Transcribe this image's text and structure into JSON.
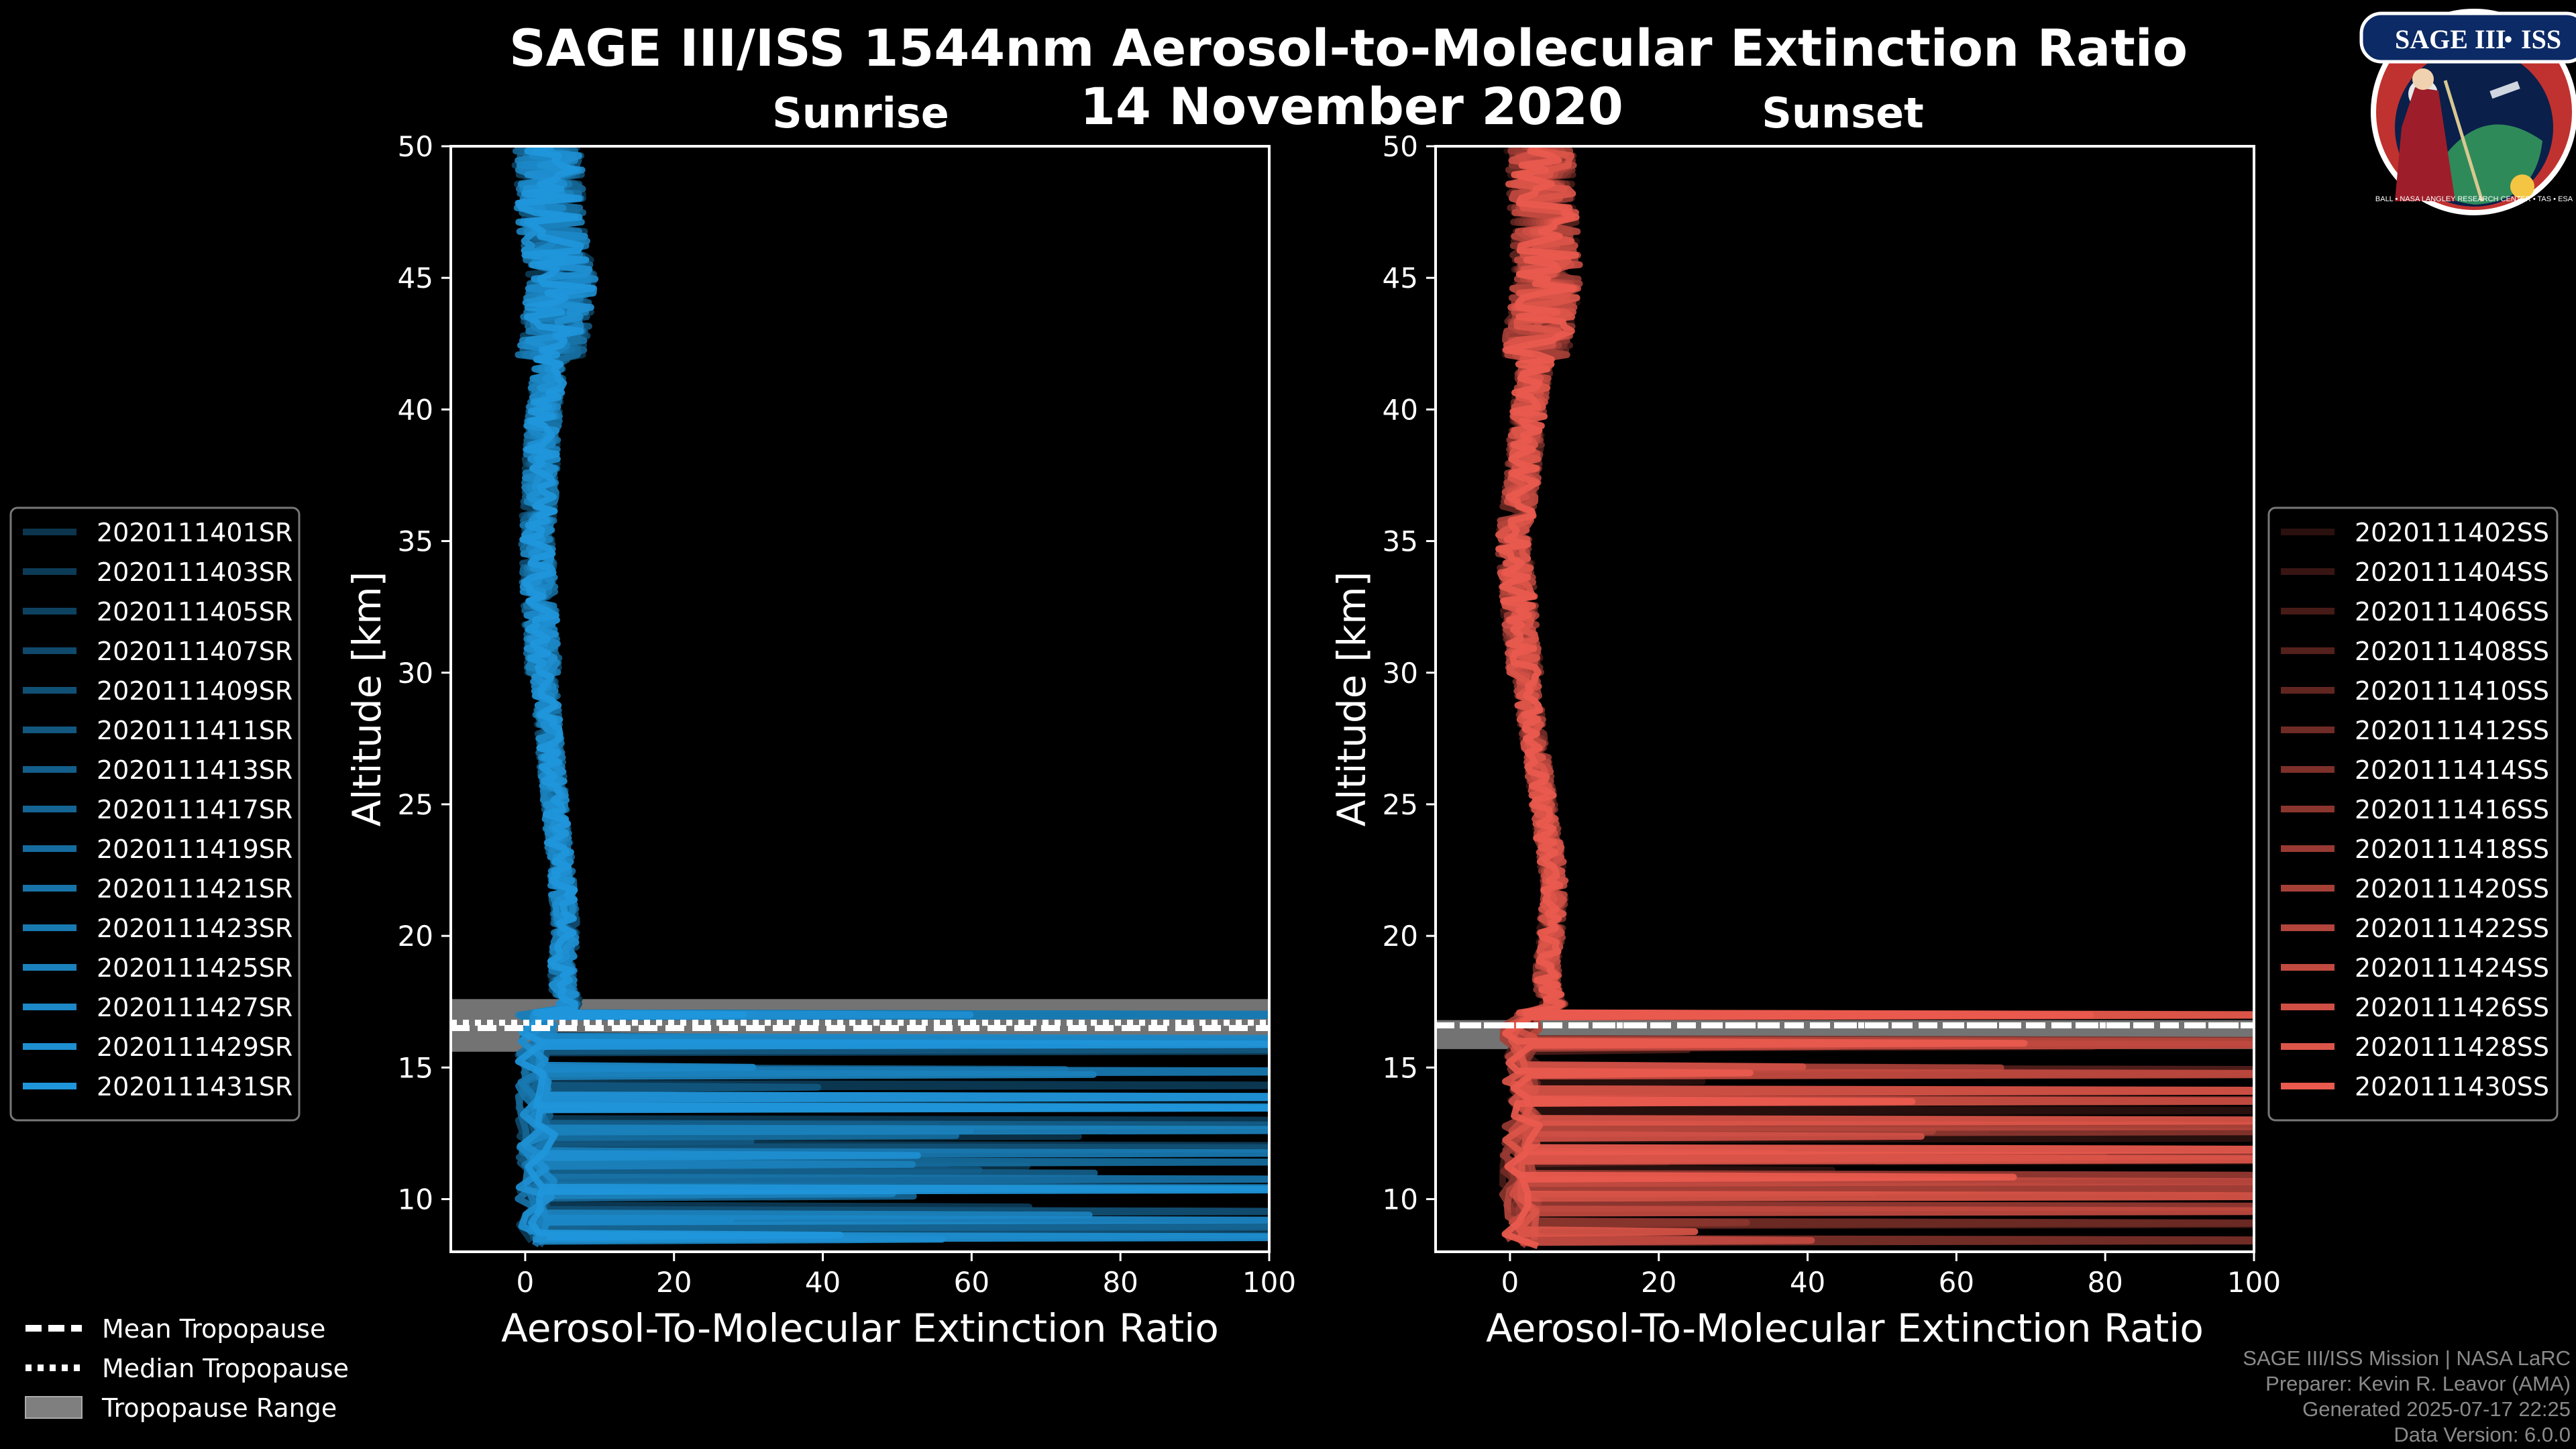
{
  "title": "SAGE III/ISS 1544nm Aerosol-to-Molecular Extinction Ratio",
  "date": "14 November 2020",
  "logo": {
    "line1": "SAGE III",
    "separator": "•",
    "line2": "ISS",
    "ring_text": "BALL • NASA LANGLEY RESEARCH CENTER • TAS • ESA"
  },
  "colors": {
    "sunrise": "#1f96db",
    "sunset": "#ea5a4e",
    "tropopause_range": "#7f7f7f",
    "background": "#000000"
  },
  "chart_data": [
    {
      "type": "line",
      "title": "Sunrise",
      "xlabel": "Aerosol-To-Molecular Extinction Ratio",
      "ylabel": "Altitude [km]",
      "xlim": [
        -10,
        100
      ],
      "ylim": [
        8,
        50
      ],
      "xticks": [
        0,
        20,
        40,
        60,
        80,
        100
      ],
      "yticks": [
        10,
        15,
        20,
        25,
        30,
        35,
        40,
        45,
        50
      ],
      "tropopause": {
        "mean": 16.5,
        "median": 16.7,
        "range": [
          15.6,
          17.6
        ]
      },
      "legend_position": "left",
      "series": [
        "2020111401SR",
        "2020111403SR",
        "2020111405SR",
        "2020111407SR",
        "2020111409SR",
        "2020111411SR",
        "2020111413SR",
        "2020111417SR",
        "2020111419SR",
        "2020111421SR",
        "2020111423SR",
        "2020111425SR",
        "2020111427SR",
        "2020111429SR",
        "2020111431SR"
      ],
      "base_profile": {
        "altitude": [
          50,
          47,
          45,
          42,
          40,
          37,
          35,
          30,
          25,
          22,
          20,
          19,
          18,
          17.5,
          17
        ],
        "ratio": [
          3,
          3.5,
          5,
          3.5,
          2.5,
          2,
          1.5,
          2.5,
          4,
          5,
          5.5,
          5,
          5,
          6,
          5
        ]
      }
    },
    {
      "type": "line",
      "title": "Sunset",
      "xlabel": "Aerosol-To-Molecular Extinction Ratio",
      "ylabel": "Altitude [km]",
      "xlim": [
        -10,
        100
      ],
      "ylim": [
        8,
        50
      ],
      "xticks": [
        0,
        20,
        40,
        60,
        80,
        100
      ],
      "yticks": [
        10,
        15,
        20,
        25,
        30,
        35,
        40,
        45,
        50
      ],
      "tropopause": {
        "mean": 16.6,
        "median": 16.6,
        "range": [
          15.7,
          16.8
        ]
      },
      "legend_position": "right",
      "series": [
        "2020111402SS",
        "2020111404SS",
        "2020111406SS",
        "2020111408SS",
        "2020111410SS",
        "2020111412SS",
        "2020111414SS",
        "2020111416SS",
        "2020111418SS",
        "2020111420SS",
        "2020111422SS",
        "2020111424SS",
        "2020111426SS",
        "2020111428SS",
        "2020111430SS"
      ],
      "base_profile": {
        "altitude": [
          50,
          47,
          45,
          42,
          40,
          37,
          35,
          30,
          25,
          22,
          20,
          19,
          18,
          17.5,
          17
        ],
        "ratio": [
          4,
          4.5,
          5,
          3.5,
          2.5,
          1.5,
          0.5,
          2,
          4.5,
          6,
          5.5,
          5,
          5,
          6,
          5
        ]
      }
    }
  ],
  "shared_legend": [
    {
      "label": "Mean Tropopause",
      "style": "dashed"
    },
    {
      "label": "Median Tropopause",
      "style": "dotted"
    },
    {
      "label": "Tropopause Range",
      "style": "patch"
    }
  ],
  "credits": {
    "mission": "SAGE III/ISS Mission | NASA LaRC",
    "preparer": "Preparer: Kevin R. Leavor (AMA)",
    "generated": "Generated 2025-07-17 22:25",
    "version": "Data Version: 6.0.0"
  }
}
